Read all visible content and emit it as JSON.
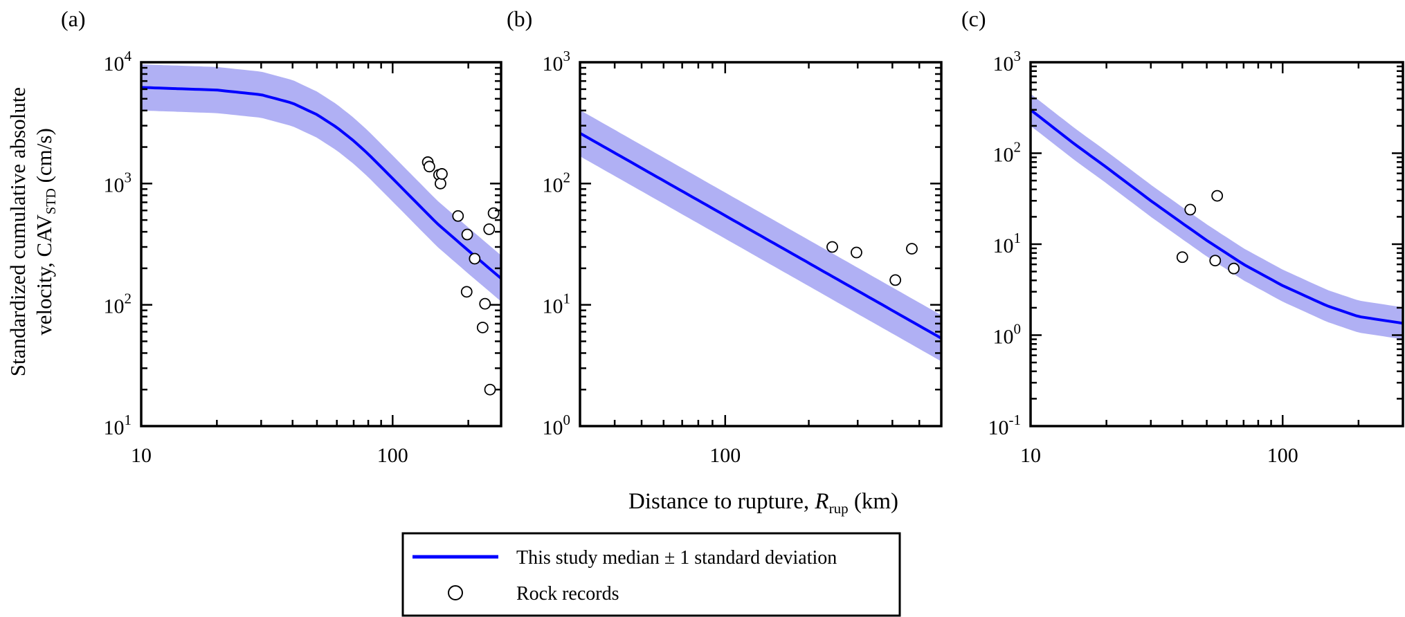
{
  "figure": {
    "ylabel_line1": "Standardized cumulative absolute",
    "ylabel_line2_prefix": "velocity, CAV",
    "ylabel_line2_sub": "STD",
    "ylabel_line2_suffix": " (cm/s)",
    "xlabel_prefix": "Distance to rupture, ",
    "xlabel_italic": "R",
    "xlabel_sub": "rup",
    "xlabel_suffix": " (km)",
    "legend": [
      {
        "label": "This study median ± 1 standard deviation",
        "symbol": "line"
      },
      {
        "label": "Rock records",
        "symbol": "circle"
      }
    ],
    "colors": {
      "median": "#0000ff",
      "band": "#b0b0f4",
      "marker": "#000000"
    }
  },
  "chart_data": [
    {
      "panel": "(a)",
      "type": "line",
      "xscale": "log",
      "yscale": "log",
      "xlim": [
        10,
        270
      ],
      "ylim": [
        10,
        10000
      ],
      "xticklabels": [
        "10",
        "100"
      ],
      "yticklabels": [
        {
          "base": "10",
          "exp": "1"
        },
        {
          "base": "10",
          "exp": "2"
        },
        {
          "base": "10",
          "exp": "3"
        },
        {
          "base": "10",
          "exp": "4"
        }
      ],
      "median": {
        "x": [
          10,
          20,
          30,
          40,
          50,
          60,
          70,
          80,
          100,
          120,
          150,
          200,
          270
        ],
        "y": [
          6200,
          5900,
          5400,
          4600,
          3700,
          2900,
          2250,
          1750,
          1100,
          750,
          470,
          280,
          165
        ]
      },
      "sigma_factor": 1.55,
      "points": {
        "x": [
          138,
          140,
          153,
          155,
          157,
          182,
          198,
          212,
          197,
          228,
          233,
          242,
          252,
          244
        ],
        "y": [
          1500,
          1380,
          1180,
          1000,
          1200,
          540,
          380,
          240,
          128,
          65,
          102,
          420,
          570,
          20
        ]
      }
    },
    {
      "panel": "(b)",
      "type": "line",
      "xscale": "log",
      "yscale": "log",
      "xlim": [
        30,
        600
      ],
      "ylim": [
        1,
        1000
      ],
      "xticklabels": [
        "100"
      ],
      "yticklabels": [
        {
          "base": "10",
          "exp": "0"
        },
        {
          "base": "10",
          "exp": "1"
        },
        {
          "base": "10",
          "exp": "2"
        },
        {
          "base": "10",
          "exp": "3"
        }
      ],
      "median": {
        "x": [
          30,
          600
        ],
        "y": [
          260,
          5.3
        ]
      },
      "sigma_factor": 1.55,
      "points": {
        "x": [
          243,
          297,
          410,
          470
        ],
        "y": [
          30,
          27,
          16,
          29
        ]
      }
    },
    {
      "panel": "(c)",
      "type": "line",
      "xscale": "log",
      "yscale": "log",
      "xlim": [
        10,
        300
      ],
      "ylim": [
        0.1,
        1000
      ],
      "xticklabels": [
        "10",
        "100"
      ],
      "yticklabels": [
        {
          "base": "10",
          "exp": "-1"
        },
        {
          "base": "10",
          "exp": "0"
        },
        {
          "base": "10",
          "exp": "1"
        },
        {
          "base": "10",
          "exp": "2"
        },
        {
          "base": "10",
          "exp": "3"
        }
      ],
      "median": {
        "x": [
          10,
          15,
          20,
          30,
          40,
          50,
          70,
          100,
          150,
          200,
          300
        ],
        "y": [
          300,
          125,
          70,
          30,
          17,
          11,
          6,
          3.5,
          2.1,
          1.6,
          1.35
        ]
      },
      "sigma_factor": 1.5,
      "points": {
        "x": [
          40,
          43,
          54,
          55,
          64
        ],
        "y": [
          7.2,
          24,
          6.6,
          34,
          5.4
        ]
      }
    }
  ]
}
